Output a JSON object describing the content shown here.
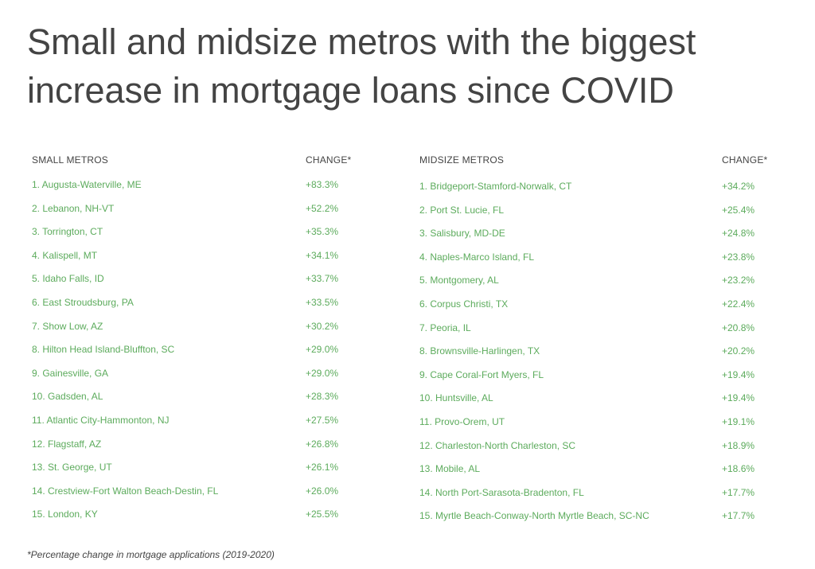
{
  "title": "Small and midsize metros with the biggest increase in mortgage loans since COVID",
  "small": {
    "header_metro": "SMALL METROS",
    "header_change": "CHANGE*",
    "rows": [
      {
        "name": "1. Augusta-Waterville, ME",
        "change": "+83.3%"
      },
      {
        "name": "2. Lebanon, NH-VT",
        "change": "+52.2%"
      },
      {
        "name": "3. Torrington, CT",
        "change": "+35.3%"
      },
      {
        "name": "4. Kalispell, MT",
        "change": "+34.1%"
      },
      {
        "name": "5. Idaho Falls, ID",
        "change": "+33.7%"
      },
      {
        "name": "6. East Stroudsburg, PA",
        "change": "+33.5%"
      },
      {
        "name": "7. Show Low, AZ",
        "change": "+30.2%"
      },
      {
        "name": "8. Hilton Head Island-Bluffton, SC",
        "change": "+29.0%"
      },
      {
        "name": "9. Gainesville, GA",
        "change": "+29.0%"
      },
      {
        "name": "10. Gadsden, AL",
        "change": "+28.3%"
      },
      {
        "name": "11. Atlantic City-Hammonton, NJ",
        "change": "+27.5%"
      },
      {
        "name": "12. Flagstaff, AZ",
        "change": "+26.8%"
      },
      {
        "name": "13. St. George, UT",
        "change": "+26.1%"
      },
      {
        "name": "14. Crestview-Fort Walton Beach-Destin, FL",
        "change": "+26.0%"
      },
      {
        "name": "15. London, KY",
        "change": "+25.5%"
      }
    ]
  },
  "midsize": {
    "header_metro": "MIDSIZE METROS",
    "header_change": "CHANGE*",
    "rows": [
      {
        "name": "1. Bridgeport-Stamford-Norwalk, CT",
        "change": "+34.2%"
      },
      {
        "name": "2. Port St. Lucie, FL",
        "change": "+25.4%"
      },
      {
        "name": "3. Salisbury, MD-DE",
        "change": "+24.8%"
      },
      {
        "name": "4. Naples-Marco Island, FL",
        "change": "+23.8%"
      },
      {
        "name": "5. Montgomery, AL",
        "change": "+23.2%"
      },
      {
        "name": "6. Corpus Christi, TX",
        "change": "+22.4%"
      },
      {
        "name": "7. Peoria, IL",
        "change": "+20.8%"
      },
      {
        "name": "8. Brownsville-Harlingen, TX",
        "change": "+20.2%"
      },
      {
        "name": "9. Cape Coral-Fort Myers, FL",
        "change": "+19.4%"
      },
      {
        "name": "10. Huntsville, AL",
        "change": "+19.4%"
      },
      {
        "name": "11. Provo-Orem, UT",
        "change": "+19.1%"
      },
      {
        "name": "12. Charleston-North Charleston, SC",
        "change": "+18.9%"
      },
      {
        "name": "13. Mobile, AL",
        "change": "+18.6%"
      },
      {
        "name": "14. North Port-Sarasota-Bradenton, FL",
        "change": "+17.7%"
      },
      {
        "name": "15. Myrtle Beach-Conway-North Myrtle Beach, SC-NC",
        "change": "+17.7%"
      }
    ]
  },
  "footnote": "*Percentage change in mortgage applications (2019-2020)"
}
